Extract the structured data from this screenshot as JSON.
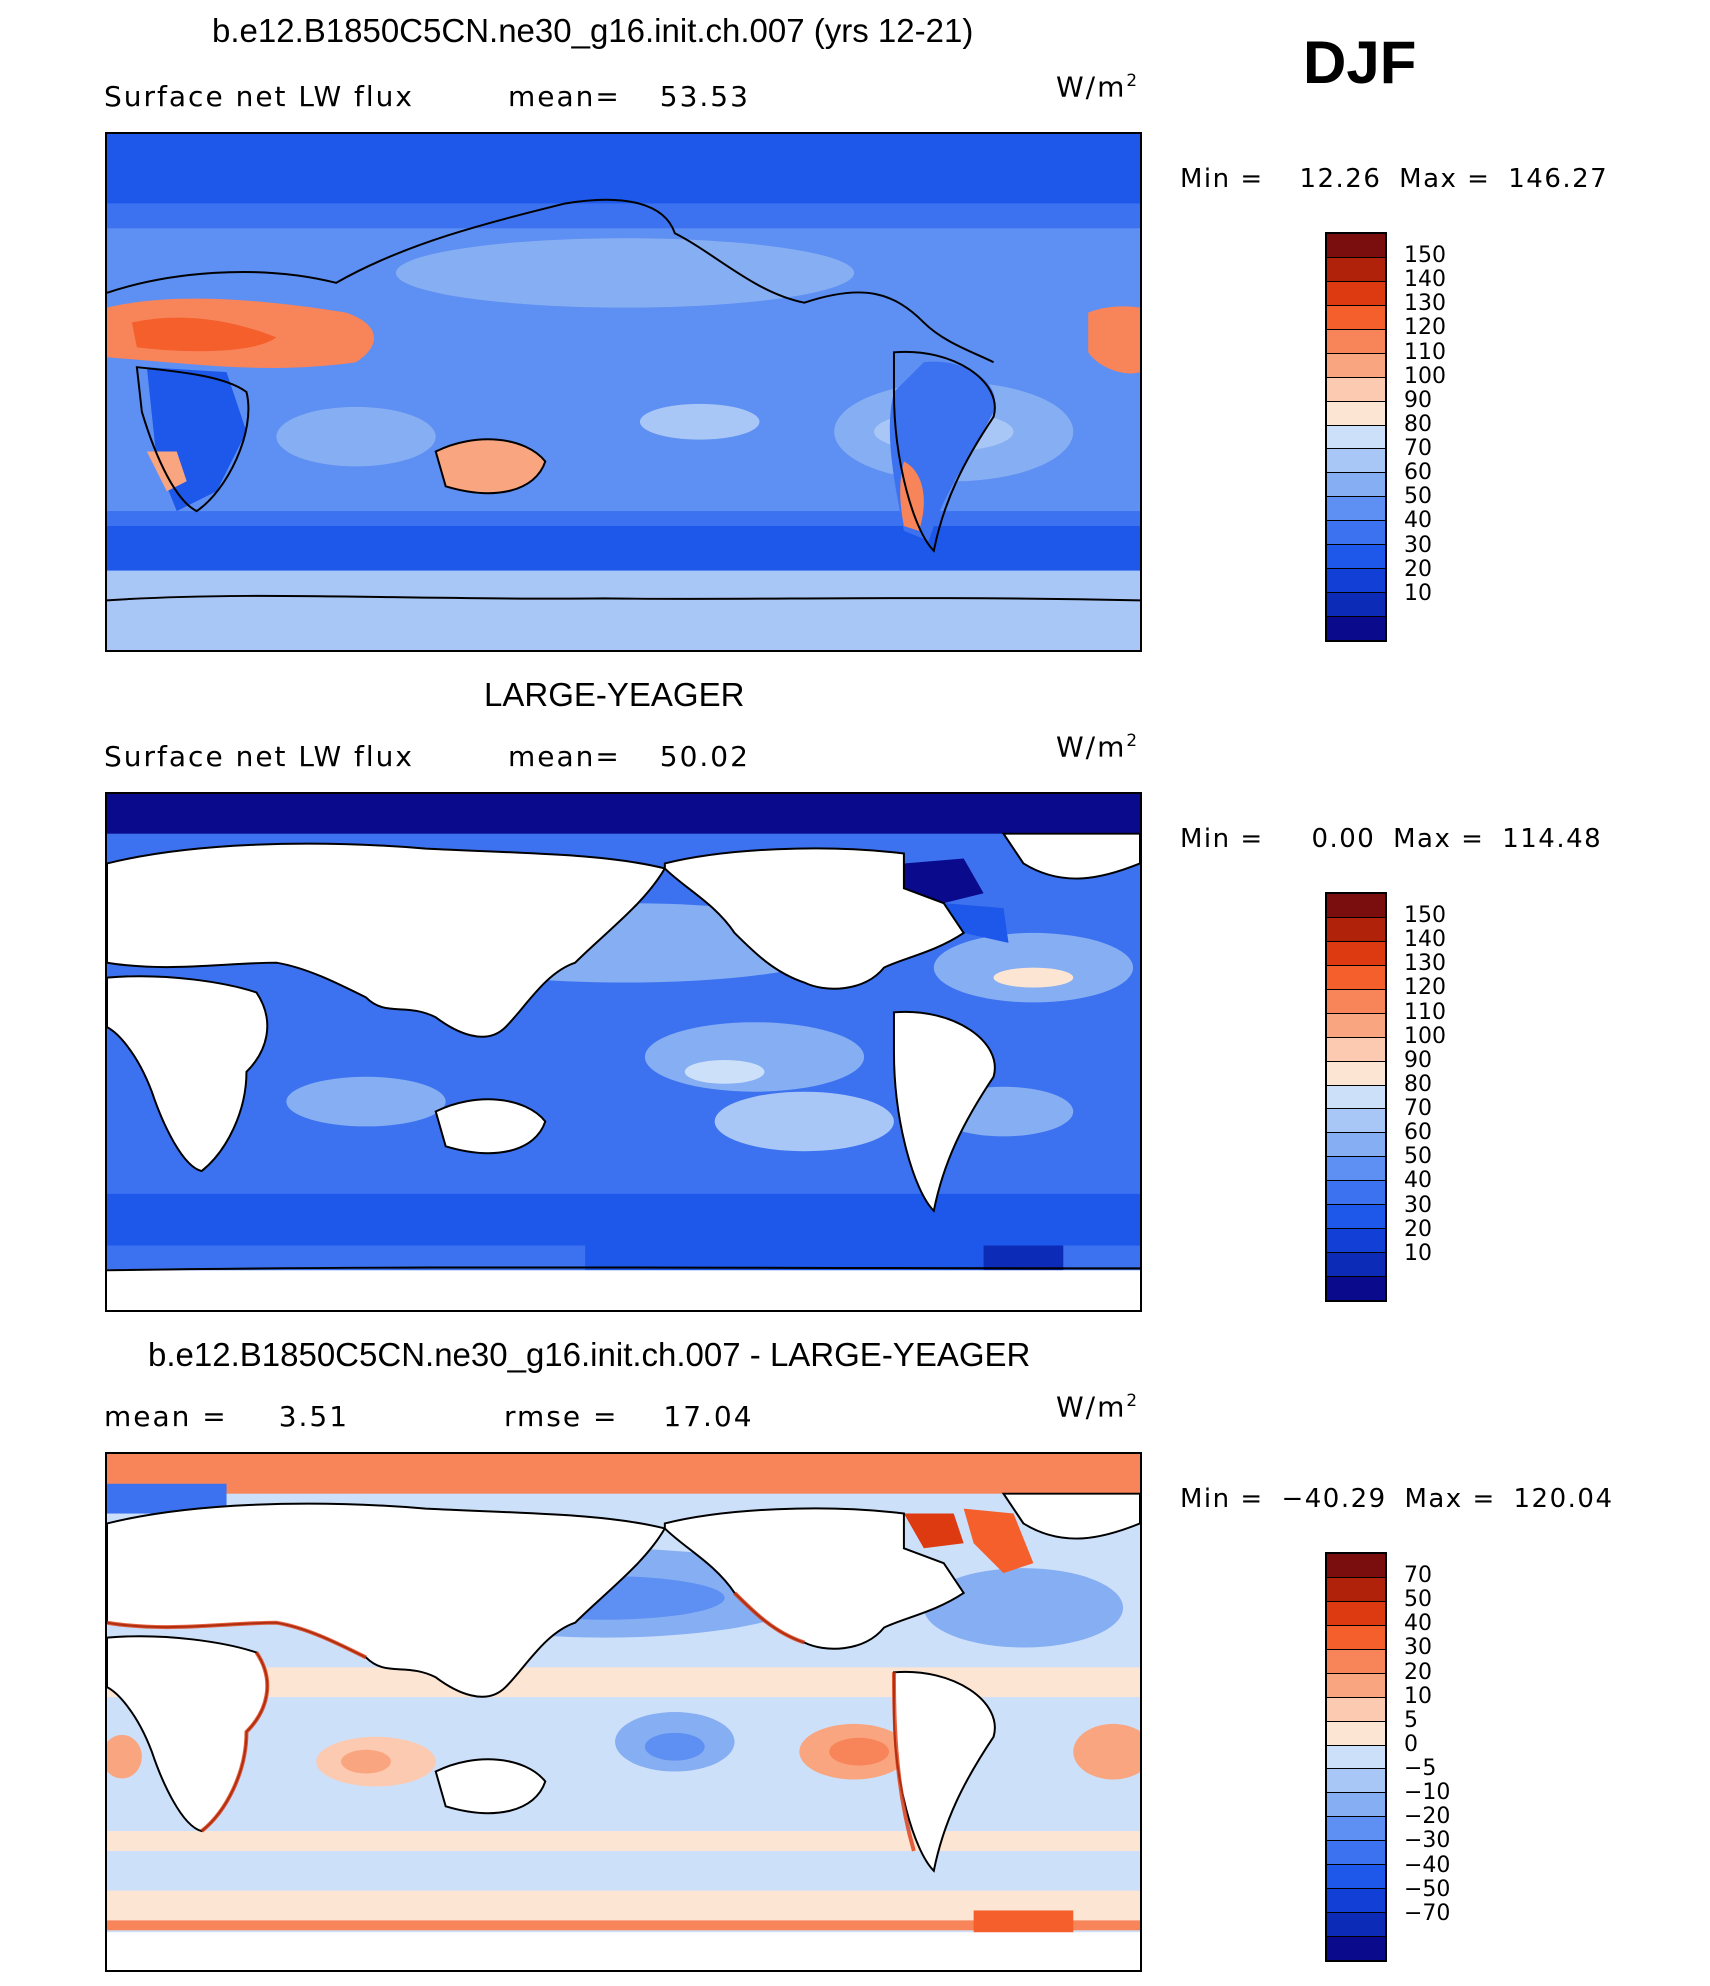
{
  "season": "DJF",
  "palette_abs": [
    "#0a0a8c",
    "#0c2cb8",
    "#1240d6",
    "#1d58ea",
    "#3c72f0",
    "#5e8ff2",
    "#86aef3",
    "#a9c7f6",
    "#cde0fa",
    "#fde5d4",
    "#fccab0",
    "#f9a680",
    "#f8845a",
    "#f45f2c",
    "#dd3a12",
    "#b0220a",
    "#7a0d0d"
  ],
  "palette_diff": [
    "#0a0a8c",
    "#0c2cb8",
    "#1240d6",
    "#1d58ea",
    "#3c72f0",
    "#5e8ff2",
    "#86aef3",
    "#a9c7f6",
    "#cde0fa",
    "#fde5d4",
    "#fccab0",
    "#f9a680",
    "#f8845a",
    "#f45f2c",
    "#dd3a12",
    "#b0220a",
    "#7a0d0d"
  ],
  "panels": {
    "p1": {
      "title": "b.e12.B1850C5CN.ne30_g16.init.ch.007 (yrs 12-21)",
      "left_label": "Surface net LW flux",
      "mean_label": "mean=",
      "mean_value": "53.53",
      "units_base": "W/m",
      "units_exp": "2",
      "min_label": "Min =",
      "min_value": "12.26",
      "max_label": "Max =",
      "max_value": "146.27",
      "ticks": [
        "150",
        "140",
        "130",
        "120",
        "110",
        "100",
        "90",
        "80",
        "70",
        "60",
        "50",
        "40",
        "30",
        "20",
        "10"
      ]
    },
    "p2": {
      "title": "LARGE-YEAGER",
      "left_label": "Surface net LW flux",
      "mean_label": "mean=",
      "mean_value": "50.02",
      "units_base": "W/m",
      "units_exp": "2",
      "min_label": "Min =",
      "min_value": "0.00",
      "max_label": "Max =",
      "max_value": "114.48",
      "ticks": [
        "150",
        "140",
        "130",
        "120",
        "110",
        "100",
        "90",
        "80",
        "70",
        "60",
        "50",
        "40",
        "30",
        "20",
        "10"
      ]
    },
    "p3": {
      "title": "b.e12.B1850C5CN.ne30_g16.init.ch.007 - LARGE-YEAGER",
      "mean_label": "mean =",
      "mean_value": "3.51",
      "rmse_label": "rmse =",
      "rmse_value": "17.04",
      "units_base": "W/m",
      "units_exp": "2",
      "min_label": "Min =",
      "min_value": "−40.29",
      "max_label": "Max =",
      "max_value": "120.04",
      "ticks": [
        "70",
        "50",
        "40",
        "30",
        "20",
        "10",
        "5",
        "0",
        "−5",
        "−10",
        "−20",
        "−30",
        "−40",
        "−50",
        "−70"
      ]
    }
  }
}
